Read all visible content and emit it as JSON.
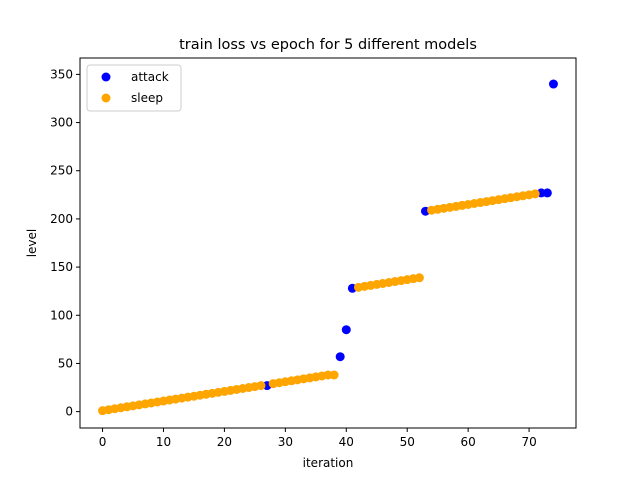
{
  "chart_data": {
    "type": "scatter",
    "title": "train loss vs epoch for 5 different models",
    "xlabel": "iteration",
    "ylabel": "level",
    "xlim": [
      -3.7,
      77.7
    ],
    "ylim": [
      -17,
      367
    ],
    "xticks": [
      0,
      10,
      20,
      30,
      40,
      50,
      60,
      70
    ],
    "yticks": [
      0,
      50,
      100,
      150,
      200,
      250,
      300,
      350
    ],
    "grid": false,
    "legend_position": "top-left",
    "series": [
      {
        "name": "attack",
        "color": "#0000ff",
        "x": [
          27,
          39,
          40,
          41,
          53,
          72,
          73,
          74
        ],
        "y": [
          27,
          57,
          85,
          128,
          208,
          227,
          227,
          340
        ]
      },
      {
        "name": "sleep",
        "color": "#ffa500",
        "x": [
          0,
          1,
          2,
          3,
          4,
          5,
          6,
          7,
          8,
          9,
          10,
          11,
          12,
          13,
          14,
          15,
          16,
          17,
          18,
          19,
          20,
          21,
          22,
          23,
          24,
          25,
          26,
          28,
          29,
          30,
          31,
          32,
          33,
          34,
          35,
          36,
          37,
          38,
          42,
          43,
          44,
          45,
          46,
          47,
          48,
          49,
          50,
          51,
          52,
          54,
          55,
          56,
          57,
          58,
          59,
          60,
          61,
          62,
          63,
          64,
          65,
          66,
          67,
          68,
          69,
          70,
          71
        ],
        "y": [
          1,
          2,
          3,
          4,
          5,
          6,
          7,
          8,
          9,
          10,
          11,
          12,
          13,
          14,
          15,
          16,
          17,
          18,
          19,
          20,
          21,
          22,
          23,
          24,
          25,
          26,
          27,
          29,
          30,
          31,
          32,
          33,
          34,
          35,
          36,
          37,
          38,
          38,
          129,
          130,
          131,
          132,
          133,
          134,
          135,
          136,
          137,
          138,
          139,
          209,
          210,
          211,
          212,
          213,
          214,
          215,
          216,
          217,
          218,
          219,
          220,
          221,
          222,
          223,
          224,
          225,
          226
        ]
      }
    ]
  }
}
